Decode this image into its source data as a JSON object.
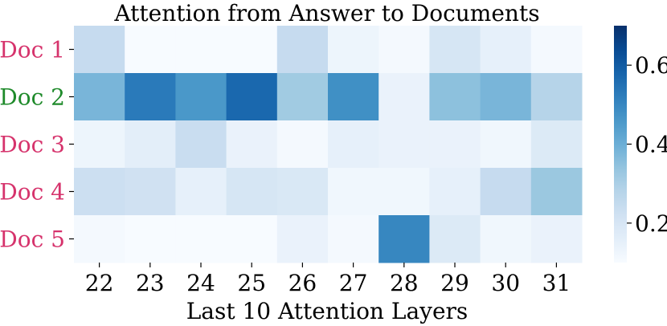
{
  "chart_data": {
    "type": "heatmap",
    "title": "Attention from Answer to Documents",
    "xlabel": "Last 10 Attention Layers",
    "ylabel": "",
    "x_categories": [
      "22",
      "23",
      "24",
      "25",
      "26",
      "27",
      "28",
      "29",
      "30",
      "31"
    ],
    "rows": [
      {
        "label": "Doc 1",
        "label_color": "#d6336c",
        "values": [
          0.25,
          0.1,
          0.1,
          0.1,
          0.25,
          0.13,
          0.11,
          0.2,
          0.15,
          0.11
        ]
      },
      {
        "label": "Doc 2",
        "label_color": "#1e8a2a",
        "values": [
          0.38,
          0.53,
          0.46,
          0.57,
          0.32,
          0.48,
          0.14,
          0.35,
          0.38,
          0.28
        ]
      },
      {
        "label": "Doc 3",
        "label_color": "#d6336c",
        "values": [
          0.13,
          0.16,
          0.24,
          0.14,
          0.11,
          0.15,
          0.14,
          0.14,
          0.12,
          0.18
        ]
      },
      {
        "label": "Doc 4",
        "label_color": "#d6336c",
        "values": [
          0.23,
          0.22,
          0.15,
          0.2,
          0.19,
          0.12,
          0.12,
          0.15,
          0.25,
          0.33
        ]
      },
      {
        "label": "Doc 5",
        "label_color": "#d6336c",
        "values": [
          0.11,
          0.1,
          0.1,
          0.1,
          0.14,
          0.11,
          0.5,
          0.18,
          0.12,
          0.14
        ]
      }
    ],
    "colorbar": {
      "colormap": "Blues",
      "vmin": 0.1,
      "vmax": 0.7,
      "ticks": [
        0.2,
        0.4,
        0.6
      ],
      "tick_labels": [
        "0.2",
        "0.4",
        "0.6"
      ]
    }
  }
}
